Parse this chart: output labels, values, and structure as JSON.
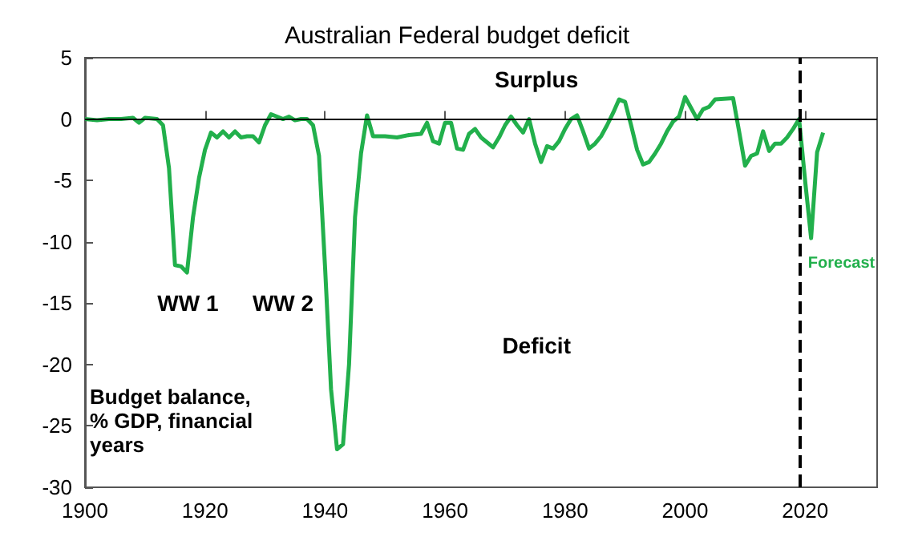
{
  "chart_data": {
    "type": "line",
    "title": "Australian Federal budget deficit",
    "ylabel": "Budget balance,\n% GDP, financial\nyears",
    "x": [
      1900,
      1902,
      1904,
      1906,
      1908,
      1909,
      1910,
      1912,
      1913,
      1914,
      1915,
      1916,
      1917,
      1918,
      1919,
      1920,
      1921,
      1922,
      1923,
      1924,
      1925,
      1926,
      1927,
      1928,
      1929,
      1930,
      1931,
      1932,
      1933,
      1934,
      1935,
      1936,
      1937,
      1938,
      1939,
      1940,
      1941,
      1942,
      1943,
      1944,
      1945,
      1946,
      1947,
      1948,
      1950,
      1952,
      1954,
      1956,
      1957,
      1958,
      1959,
      1960,
      1961,
      1962,
      1963,
      1964,
      1965,
      1966,
      1968,
      1969,
      1970,
      1971,
      1972,
      1973,
      1974,
      1975,
      1976,
      1977,
      1978,
      1979,
      1980,
      1981,
      1982,
      1983,
      1984,
      1985,
      1986,
      1987,
      1988,
      1989,
      1990,
      1991,
      1992,
      1993,
      1994,
      1995,
      1996,
      1997,
      1998,
      1999,
      2000,
      2001,
      2002,
      2003,
      2004,
      2005,
      2008,
      2009,
      2010,
      2011,
      2012,
      2013,
      2014,
      2015,
      2016,
      2017,
      2018,
      2019,
      2020,
      2021,
      2022,
      2023
    ],
    "series": [
      {
        "color": "#22b04c",
        "values": [
          0,
          -0.1,
          0,
          0,
          0.1,
          -0.3,
          0.1,
          0,
          -0.5,
          -4,
          -11.9,
          -12,
          -12.5,
          -8,
          -4.8,
          -2.5,
          -1.1,
          -1.5,
          -1,
          -1.5,
          -1,
          -1.5,
          -1.4,
          -1.4,
          -1.9,
          -0.5,
          0.4,
          0.2,
          0,
          0.2,
          -0.1,
          0,
          0,
          -0.5,
          -3,
          -12,
          -22,
          -26.9,
          -26.5,
          -20,
          -8,
          -2.8,
          0.3,
          -1.4,
          -1.4,
          -1.5,
          -1.3,
          -1.2,
          -0.3,
          -1.8,
          -2,
          -0.3,
          -0.3,
          -2.4,
          -2.5,
          -1.2,
          -0.8,
          -1.5,
          -2.3,
          -1.5,
          -0.5,
          0.2,
          -0.5,
          -1.1,
          0,
          -2,
          -3.5,
          -2.2,
          -2.4,
          -1.8,
          -0.8,
          0,
          0.3,
          -1,
          -2.4,
          -2,
          -1.4,
          -0.5,
          0.5,
          1.6,
          1.4,
          -0.5,
          -2.5,
          -3.7,
          -3.5,
          -2.8,
          -2,
          -1,
          -0.2,
          0.2,
          1.8,
          0.9,
          0,
          0.8,
          1,
          1.6,
          1.7,
          -1,
          -3.8,
          -3,
          -2.8,
          -1,
          -2.6,
          -2,
          -2,
          -1.5,
          -0.8,
          0,
          -5,
          -9.7,
          -2.7,
          -1.1
        ]
      }
    ],
    "xlim": [
      1900,
      2032
    ],
    "xticks": [
      1900,
      1920,
      1940,
      1960,
      1980,
      2000,
      2020
    ],
    "ylim": [
      -30,
      5
    ],
    "yticks": [
      -30,
      -25,
      -20,
      -15,
      -10,
      -5,
      0,
      5
    ],
    "grid": false,
    "marker": "none",
    "line_style": "solid",
    "ref_lines": [
      {
        "axis": "y",
        "value": 0,
        "label": null,
        "color": "#000000",
        "line_style": "solid"
      },
      {
        "axis": "x",
        "value": 2019,
        "label": null,
        "color": "#000000",
        "line_style": "dashed"
      }
    ],
    "annotations": [
      "Surplus",
      "Deficit",
      "WW 1",
      "WW 2",
      "Forecast"
    ]
  }
}
